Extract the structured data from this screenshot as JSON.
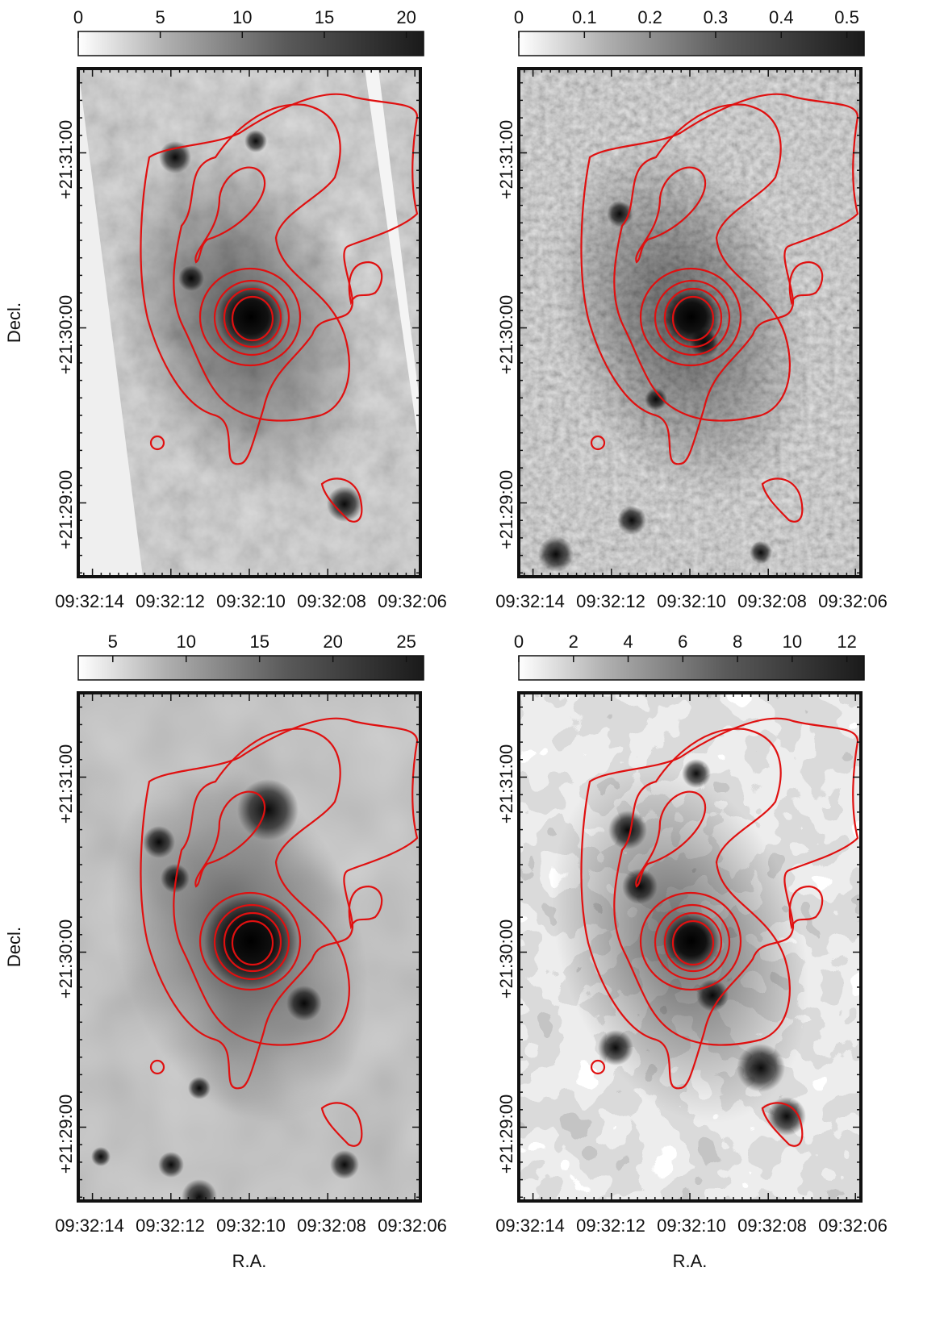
{
  "figure": {
    "x_axis_title": "R.A.",
    "y_axis_title": "Decl.",
    "ra_ticks": [
      "09:32:14",
      "09:32:12",
      "09:32:10",
      "09:32:08",
      "09:32:06"
    ],
    "dec_ticks": [
      "+21:31:00",
      "+21:30:00",
      "+21:29:00"
    ],
    "colors": {
      "contour": "#e01010",
      "frame": "#111111"
    }
  },
  "panels": [
    {
      "id": "top-left",
      "colorbar_ticks": [
        "0",
        "5",
        "10",
        "15",
        "20"
      ],
      "show_y_title": true,
      "show_x_title": false,
      "texture": "optical"
    },
    {
      "id": "top-right",
      "colorbar_ticks": [
        "0",
        "0.1",
        "0.2",
        "0.3",
        "0.4",
        "0.5"
      ],
      "show_y_title": false,
      "show_x_title": false,
      "texture": "noisy"
    },
    {
      "id": "bottom-left",
      "colorbar_ticks": [
        "5",
        "10",
        "15",
        "20",
        "25"
      ],
      "show_y_title": true,
      "show_x_title": true,
      "texture": "smooth"
    },
    {
      "id": "bottom-right",
      "colorbar_ticks": [
        "0",
        "2",
        "4",
        "6",
        "8",
        "10",
        "12"
      ],
      "show_y_title": false,
      "show_x_title": true,
      "texture": "patchy"
    }
  ]
}
